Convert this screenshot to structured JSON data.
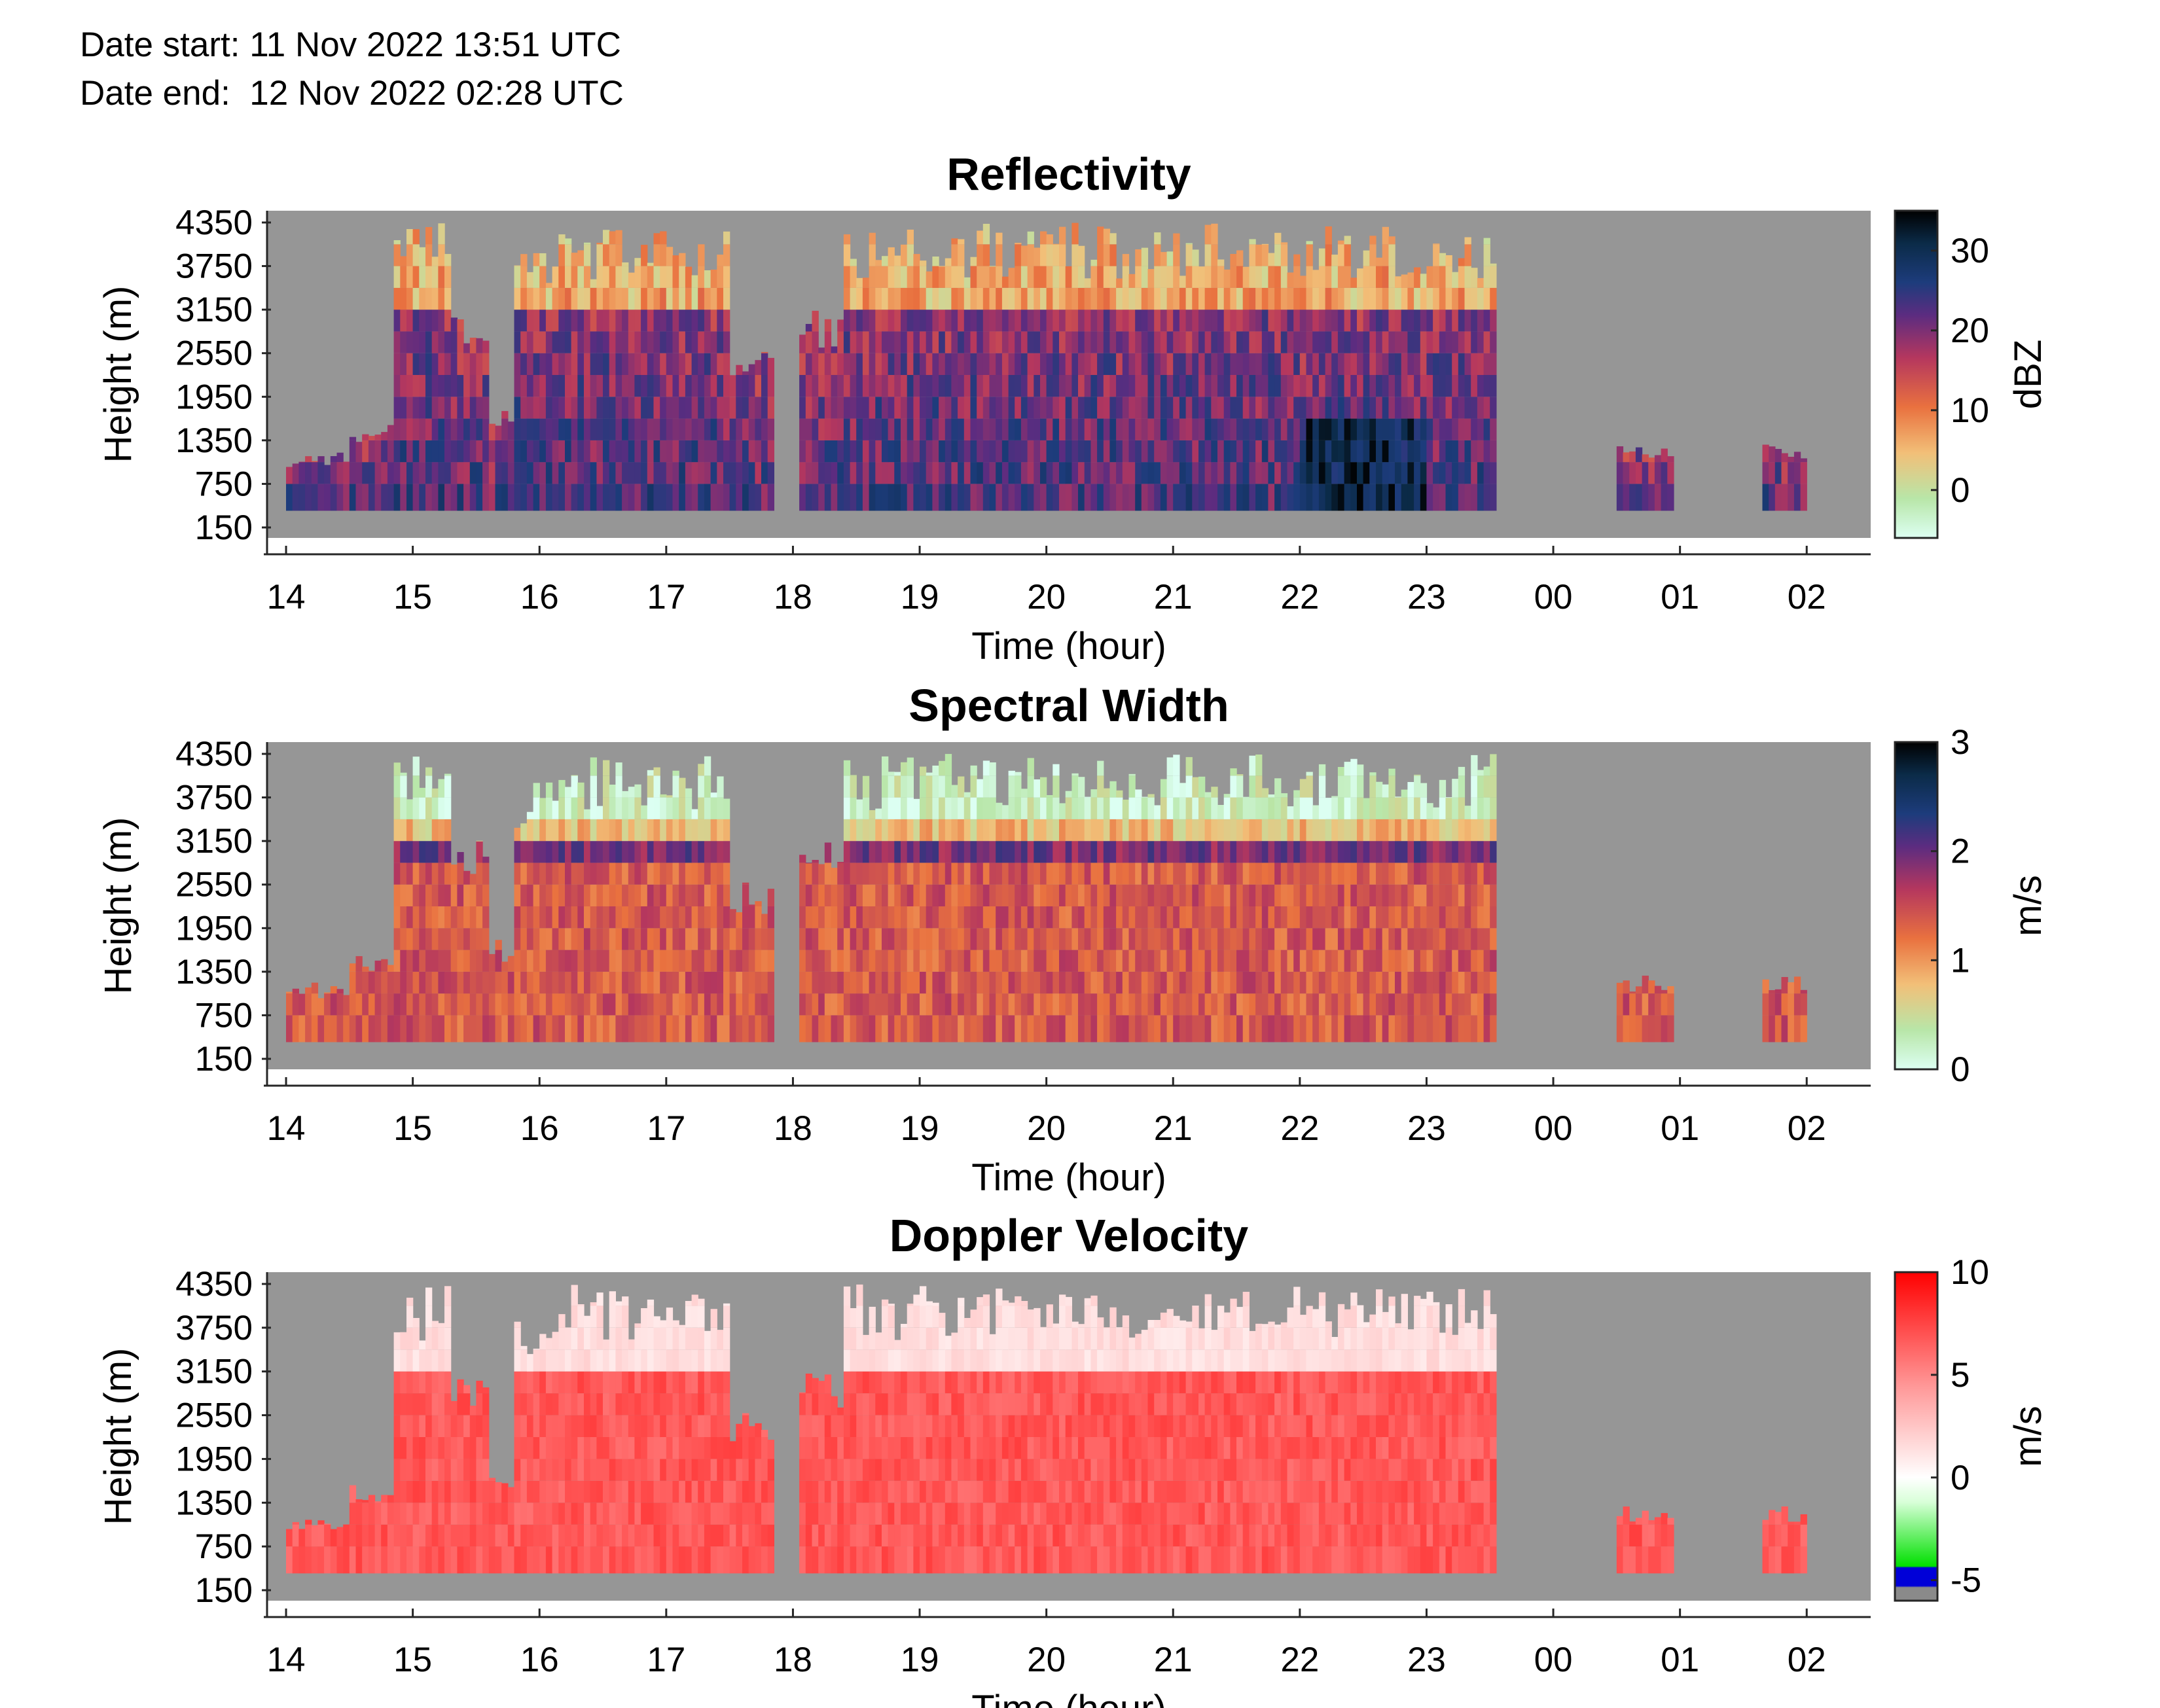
{
  "header": {
    "date_start_label": "Date start:",
    "date_start_value": "11 Nov 2022 13:51 UTC",
    "date_end_label": "Date end:",
    "date_end_value": "12 Nov 2022 02:28 UTC"
  },
  "chart_data": [
    {
      "type": "heatmap",
      "title": "Reflectivity",
      "xlabel": "Time (hour)",
      "ylabel": "Height (m)",
      "x_ticks": [
        "14",
        "15",
        "16",
        "17",
        "18",
        "19",
        "20",
        "21",
        "22",
        "23",
        "00",
        "01",
        "02"
      ],
      "y_ticks": [
        "4350",
        "3750",
        "3150",
        "2550",
        "1950",
        "1350",
        "750",
        "150"
      ],
      "ylim": [
        150,
        4350
      ],
      "colorbar": {
        "label": "dBZ",
        "ticks": [
          "30",
          "20",
          "10",
          "0"
        ],
        "range": [
          -6,
          35
        ]
      },
      "colors": {
        "background": "#969696",
        "scale": [
          "#d9fff0",
          "#f4c27a",
          "#e8663b",
          "#b33a5a",
          "#5a2d7e",
          "#1c3a7a",
          "#0c2a4a",
          "#000000"
        ]
      },
      "grid": false
    },
    {
      "type": "heatmap",
      "title": "Spectral Width",
      "xlabel": "Time (hour)",
      "ylabel": "Height (m)",
      "x_ticks": [
        "14",
        "15",
        "16",
        "17",
        "18",
        "19",
        "20",
        "21",
        "22",
        "23",
        "00",
        "01",
        "02"
      ],
      "y_ticks": [
        "4350",
        "3750",
        "3150",
        "2550",
        "1950",
        "1350",
        "750",
        "150"
      ],
      "ylim": [
        150,
        4350
      ],
      "colorbar": {
        "label": "m/s",
        "ticks": [
          "3",
          "2",
          "1",
          "0"
        ],
        "range": [
          0,
          3
        ]
      },
      "colors": {
        "background": "#969696",
        "scale": [
          "#d9fff0",
          "#f4c27a",
          "#e8663b",
          "#b33a5a",
          "#5a2d7e",
          "#1c3a7a",
          "#0c2a4a",
          "#000000"
        ]
      },
      "grid": false
    },
    {
      "type": "heatmap",
      "title": "Doppler Velocity",
      "xlabel": "Time (hour)",
      "ylabel": "Height (m)",
      "x_ticks": [
        "14",
        "15",
        "16",
        "17",
        "18",
        "19",
        "20",
        "21",
        "22",
        "23",
        "00",
        "01",
        "02"
      ],
      "y_ticks": [
        "4350",
        "3750",
        "3150",
        "2550",
        "1950",
        "1350",
        "750",
        "150"
      ],
      "ylim": [
        150,
        4350
      ],
      "colorbar": {
        "label": "m/s",
        "ticks": [
          "10",
          "5",
          "0",
          "-5"
        ],
        "range": [
          -6,
          10
        ]
      },
      "colors": {
        "background": "#969696",
        "scale": [
          "#ff0000",
          "#ffffff",
          "#00cc00",
          "#0000dd",
          "#7f7f7f"
        ]
      },
      "grid": false
    }
  ]
}
